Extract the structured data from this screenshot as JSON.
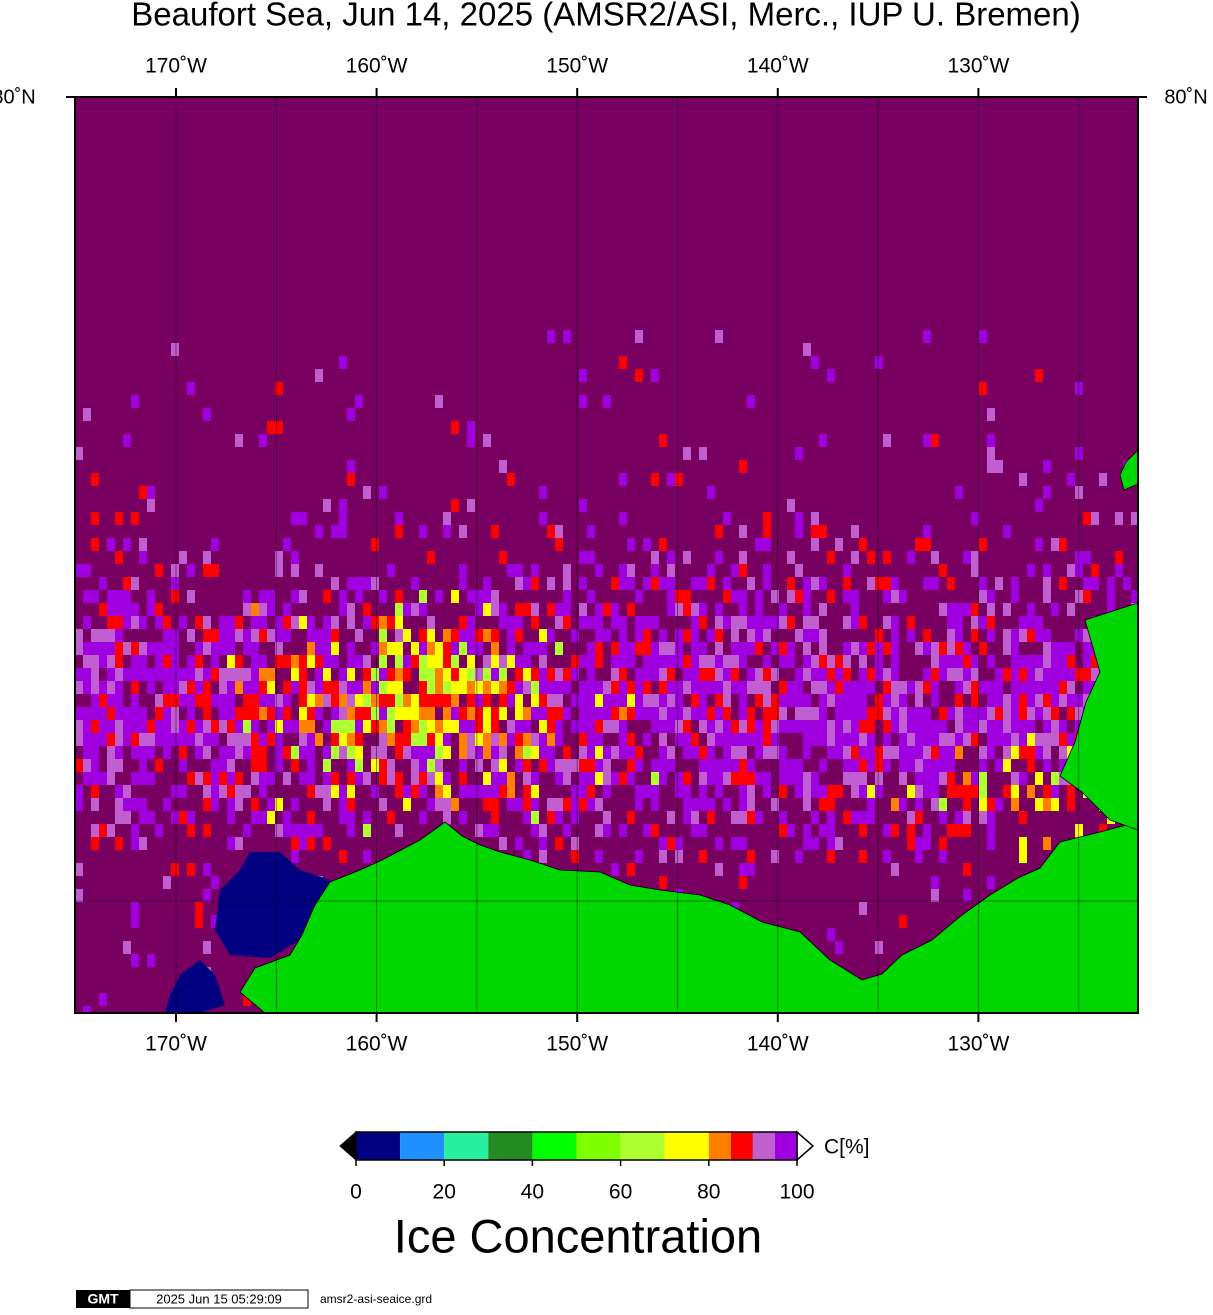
{
  "title": "Beaufort Sea, Jun 14, 2025 (AMSR2/ASI, Merc., IUP U. Bremen)",
  "map": {
    "lon_labels": [
      "170˚W",
      "160˚W",
      "150˚W",
      "140˚W",
      "130˚W"
    ],
    "lat_label": "80˚N"
  },
  "colorbar": {
    "unit": "C[%]",
    "ticks": [
      0,
      20,
      40,
      60,
      80,
      100
    ],
    "bins": [
      0,
      10,
      20,
      30,
      40,
      50,
      60,
      70,
      80,
      85,
      90,
      95,
      100
    ],
    "colors": [
      "#000080",
      "#1e90ff",
      "#28f0a0",
      "#228b22",
      "#00ff00",
      "#7fff00",
      "#adff2f",
      "#ffff00",
      "#ff8000",
      "#ff0000",
      "#c060d0",
      "#a000e0"
    ],
    "title": "Ice Concentration"
  },
  "footer": {
    "logo": "GMT",
    "timestamp": "2025 Jun 15 05:29:09",
    "file": "amsr2-asi-seaice.grd"
  }
}
